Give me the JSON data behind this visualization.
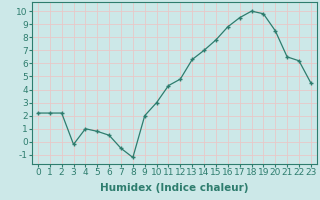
{
  "x": [
    0,
    1,
    2,
    3,
    4,
    5,
    6,
    7,
    8,
    9,
    10,
    11,
    12,
    13,
    14,
    15,
    16,
    17,
    18,
    19,
    20,
    21,
    22,
    23
  ],
  "y": [
    2.2,
    2.2,
    2.2,
    -0.2,
    1.0,
    0.8,
    0.5,
    -0.5,
    -1.2,
    2.0,
    3.0,
    4.3,
    4.8,
    6.3,
    7.0,
    7.8,
    8.8,
    9.5,
    10.0,
    9.8,
    8.5,
    6.5,
    6.2,
    4.5
  ],
  "line_color": "#2e7d6e",
  "marker": "+",
  "xlabel": "Humidex (Indice chaleur)",
  "xlim": [
    -0.5,
    23.5
  ],
  "ylim": [
    -1.7,
    10.7
  ],
  "yticks": [
    -1,
    0,
    1,
    2,
    3,
    4,
    5,
    6,
    7,
    8,
    9,
    10
  ],
  "xticks": [
    0,
    1,
    2,
    3,
    4,
    5,
    6,
    7,
    8,
    9,
    10,
    11,
    12,
    13,
    14,
    15,
    16,
    17,
    18,
    19,
    20,
    21,
    22,
    23
  ],
  "bg_color": "#cce8e8",
  "grid_color": "#e8c8c8",
  "tick_label_fontsize": 6.5,
  "xlabel_fontsize": 7.5
}
